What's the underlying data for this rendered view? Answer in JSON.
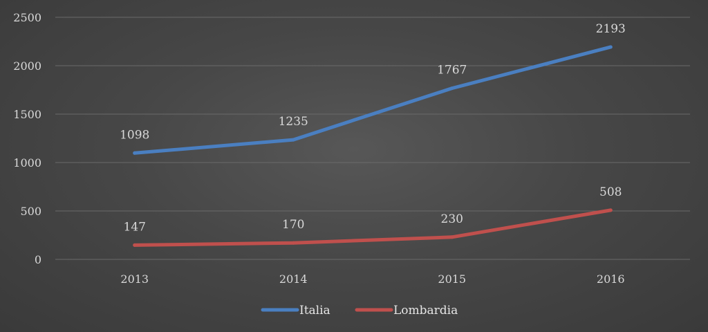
{
  "chart_data": {
    "type": "line",
    "categories": [
      "2013",
      "2014",
      "2015",
      "2016"
    ],
    "series": [
      {
        "name": "Italia",
        "values": [
          1098,
          1235,
          1767,
          2193
        ],
        "color": "#4a7fc1"
      },
      {
        "name": "Lombardia",
        "values": [
          147,
          170,
          230,
          508
        ],
        "color": "#c0504d"
      }
    ],
    "ylim": [
      0,
      2500
    ],
    "yticks": [
      0,
      500,
      1000,
      1500,
      2000,
      2500
    ],
    "grid": true,
    "legend": "bottom",
    "title": "",
    "xlabel": "",
    "ylabel": ""
  }
}
